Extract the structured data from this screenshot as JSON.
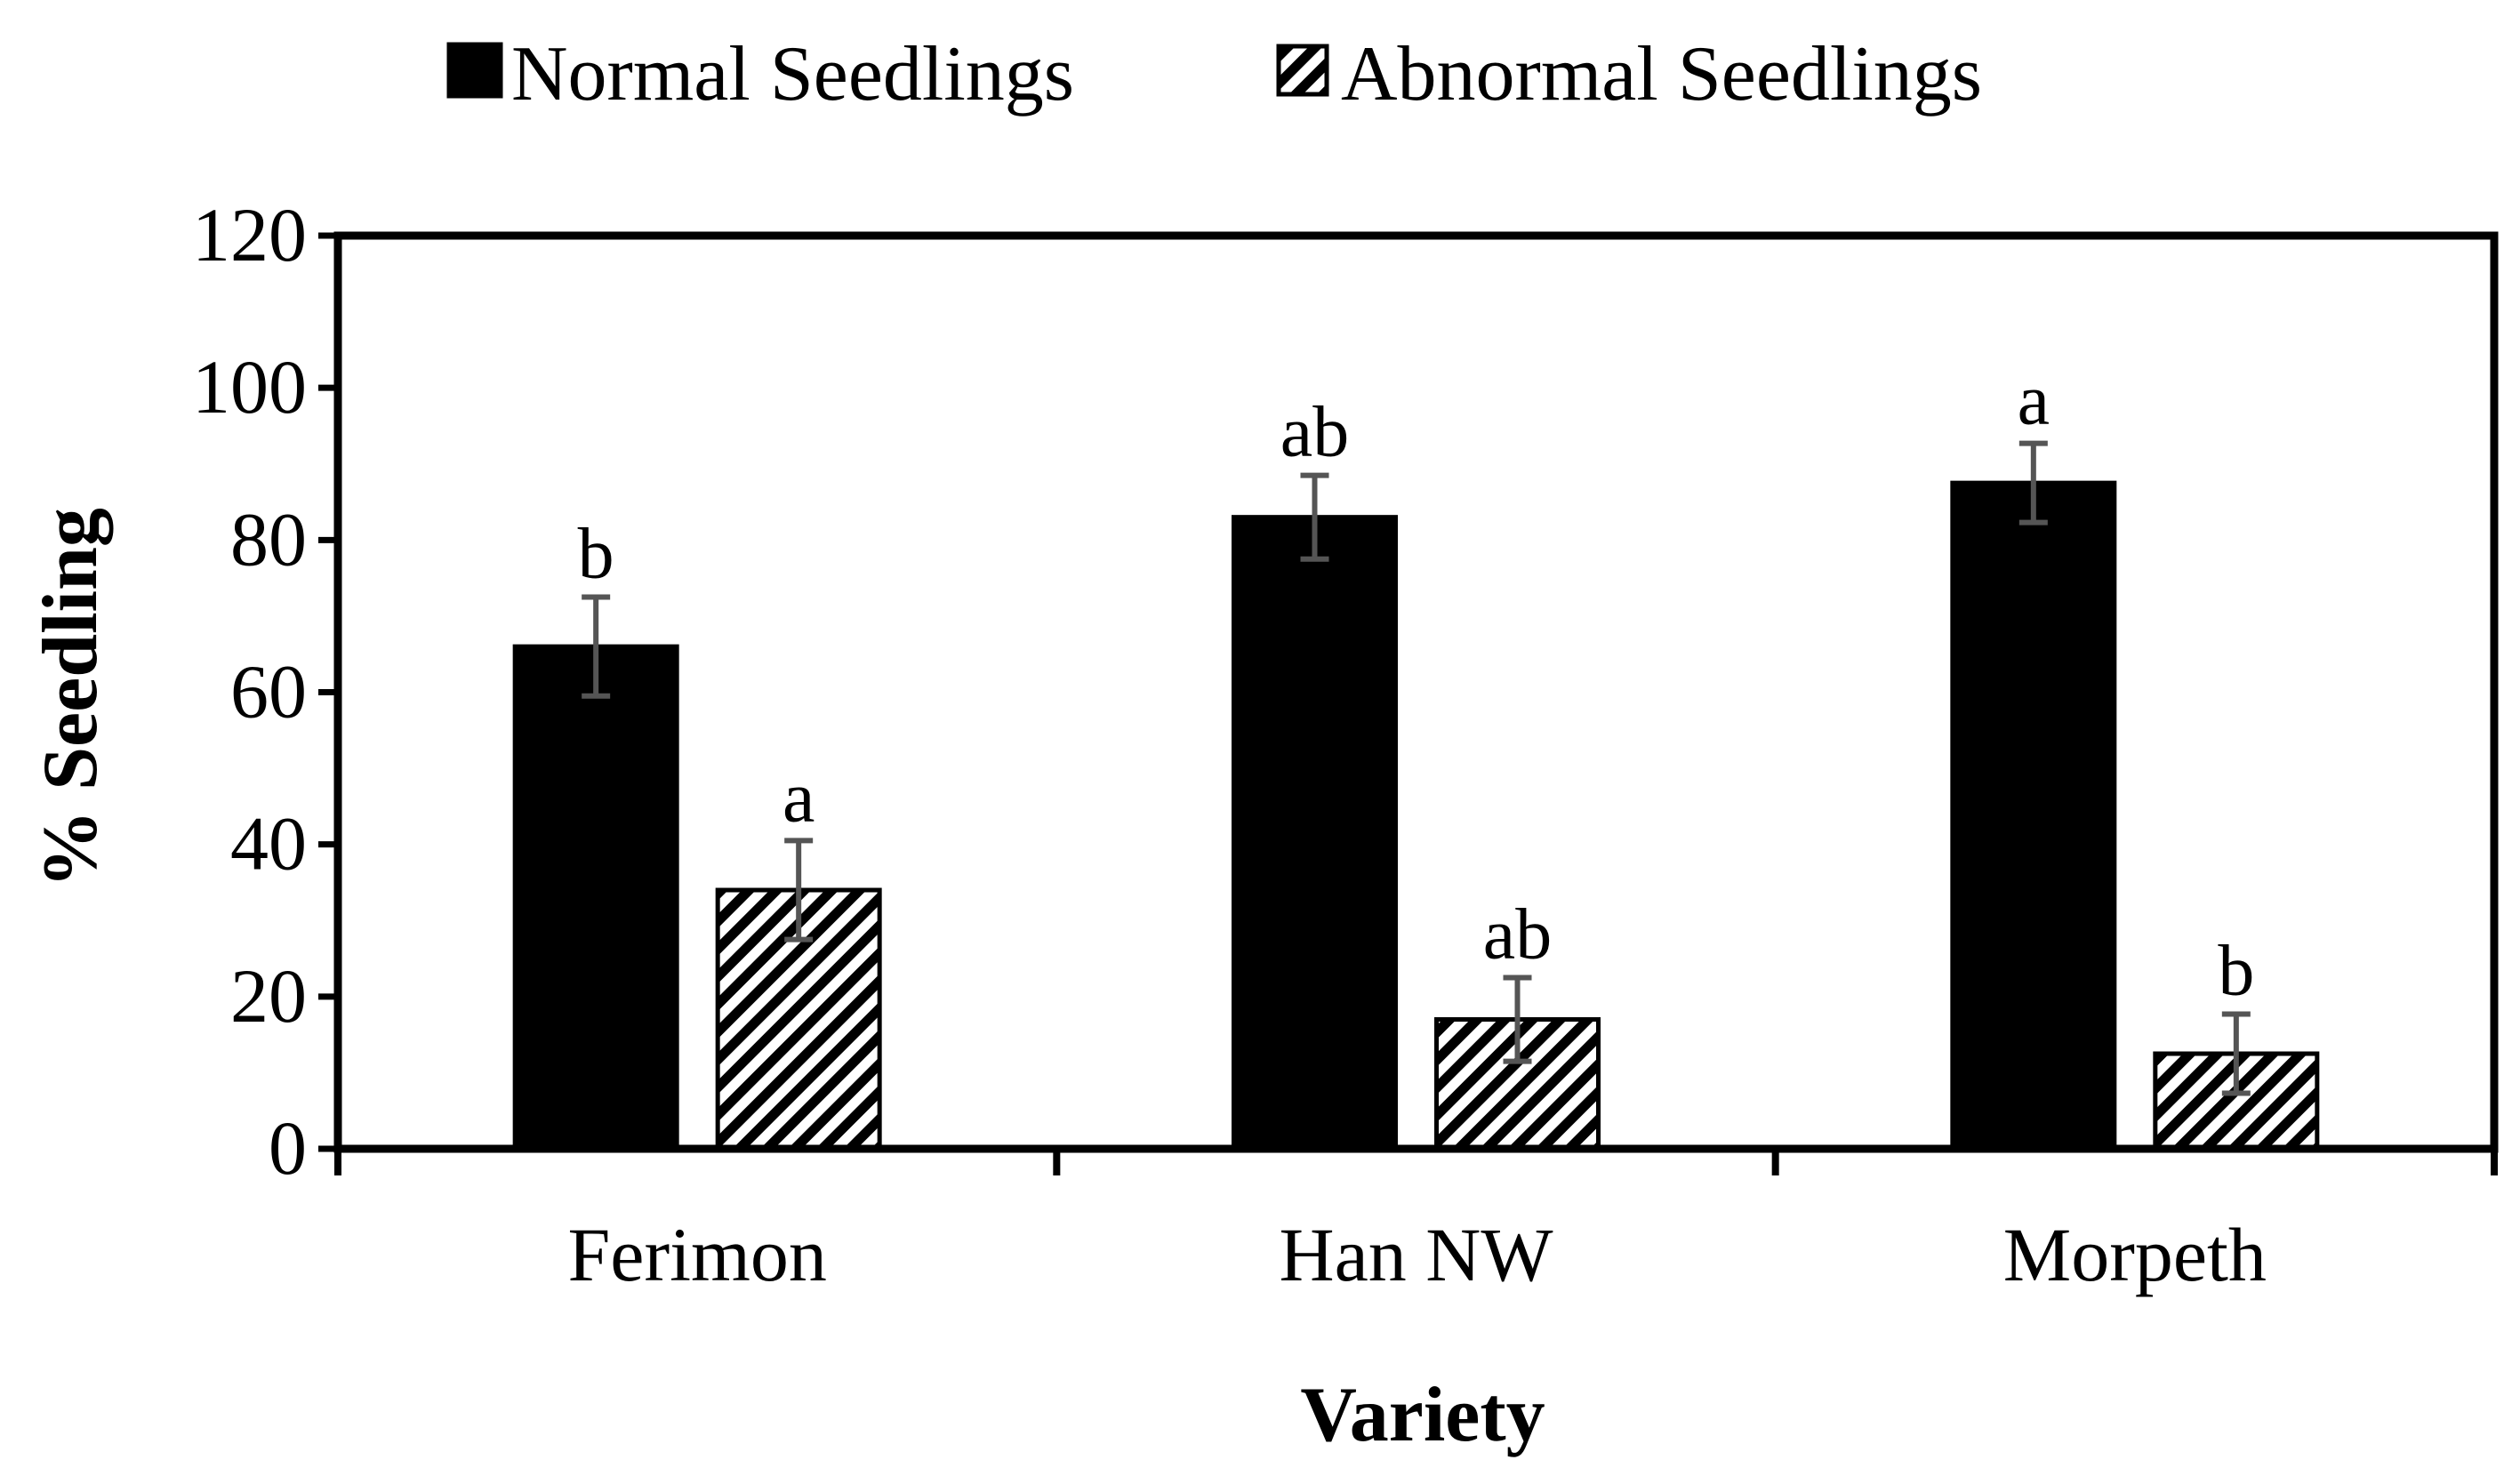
{
  "chart_data": {
    "type": "bar",
    "title": "",
    "xlabel": "Variety",
    "ylabel": "% Seedling",
    "ylim": [
      0,
      120
    ],
    "yticks": [
      0,
      20,
      40,
      60,
      80,
      100,
      120
    ],
    "categories": [
      "Ferimon",
      "Han NW",
      "Morpeth"
    ],
    "legend_position": "top-center",
    "series": [
      {
        "name": "Normal Seedlings",
        "pattern": "solid",
        "color": "#000000",
        "values": [
          66,
          83,
          87.5
        ],
        "errors": [
          6.5,
          5.5,
          5.2
        ],
        "significance": [
          "b",
          "ab",
          "a"
        ]
      },
      {
        "name": "Abnormal Seedlings",
        "pattern": "diagonal-hatch",
        "color": "#000000",
        "values": [
          34,
          17,
          12.5
        ],
        "errors": [
          6.5,
          5.5,
          5.2
        ],
        "significance": [
          "a",
          "ab",
          "b"
        ]
      }
    ]
  }
}
